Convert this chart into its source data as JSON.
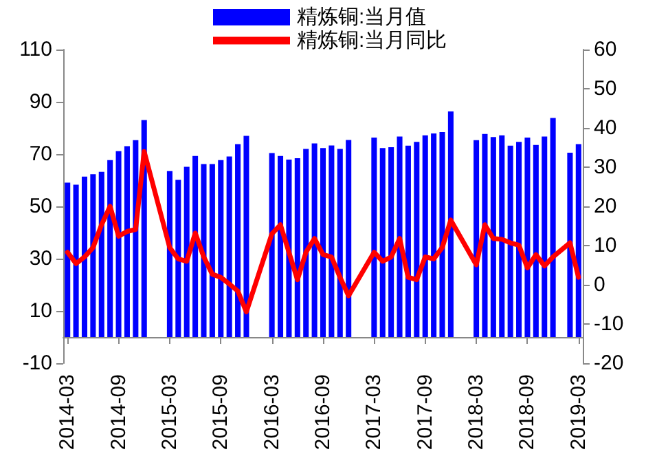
{
  "chart_data": {
    "type": "bar",
    "categories": [
      "2014-03",
      null,
      null,
      null,
      null,
      null,
      "2014-09",
      null,
      null,
      null,
      null,
      null,
      "2015-03",
      null,
      null,
      null,
      null,
      null,
      "2015-09",
      null,
      null,
      null,
      null,
      null,
      "2016-03",
      null,
      null,
      null,
      null,
      null,
      "2016-09",
      null,
      null,
      null,
      null,
      null,
      "2017-03",
      null,
      null,
      null,
      null,
      null,
      "2017-09",
      null,
      null,
      null,
      null,
      null,
      "2018-03",
      null,
      null,
      null,
      null,
      null,
      "2018-09",
      null,
      null,
      null,
      null,
      null,
      "2019-03"
    ],
    "series": [
      {
        "name": "精炼铜:当月值",
        "color": "#0000ff",
        "values": [
          59.1,
          58.3,
          61.4,
          62.3,
          63.2,
          67.7,
          71.1,
          73,
          75.3,
          83,
          null,
          null,
          63.5,
          60.1,
          65.1,
          69.3,
          66.2,
          66.2,
          67.7,
          69.1,
          73.8,
          77,
          null,
          null,
          70.4,
          69.3,
          67.9,
          68.4,
          72,
          74.1,
          72.3,
          73.3,
          72,
          75.4,
          null,
          null,
          76.3,
          72.3,
          72.6,
          76.7,
          73.2,
          74.7,
          77.2,
          77.9,
          78.4,
          86.3,
          null,
          null,
          75.3,
          77.7,
          76.5,
          77.2,
          73.2,
          74.7,
          76.3,
          73.5,
          76.7,
          83.8,
          null,
          70.5,
          73.8
        ]
      },
      {
        "name": "精炼铜:当月同比",
        "type": "line",
        "axis": "y2",
        "color": "#ff0000",
        "values": [
          8.3,
          5.4,
          7.1,
          9.5,
          15.3,
          20,
          12.4,
          13.6,
          14.1,
          34,
          null,
          null,
          9.5,
          6.6,
          6,
          13.2,
          7.1,
          2.7,
          1.9,
          0.2,
          -1.6,
          -6.9,
          null,
          null,
          13,
          15.3,
          8.3,
          1.3,
          8.3,
          11.8,
          7.7,
          7.1,
          1.9,
          -2.8,
          null,
          null,
          8.3,
          6,
          7.1,
          11.8,
          1.9,
          1.3,
          7.1,
          6.6,
          9.5,
          16.5,
          null,
          null,
          5.1,
          15.3,
          11.8,
          11.6,
          10.7,
          10.1,
          4.3,
          7.7,
          4.8,
          7.1,
          null,
          10.7,
          1.9
        ]
      }
    ],
    "ylim": [
      -10,
      110
    ],
    "yticks": [
      -10,
      10,
      30,
      50,
      70,
      90,
      110
    ],
    "y2lim": [
      -20,
      60
    ],
    "y2ticks": [
      -20,
      -10,
      0,
      10,
      20,
      30,
      40,
      50,
      60
    ],
    "legend": "top",
    "grid": false,
    "marker": "none",
    "line_style": "solid"
  }
}
